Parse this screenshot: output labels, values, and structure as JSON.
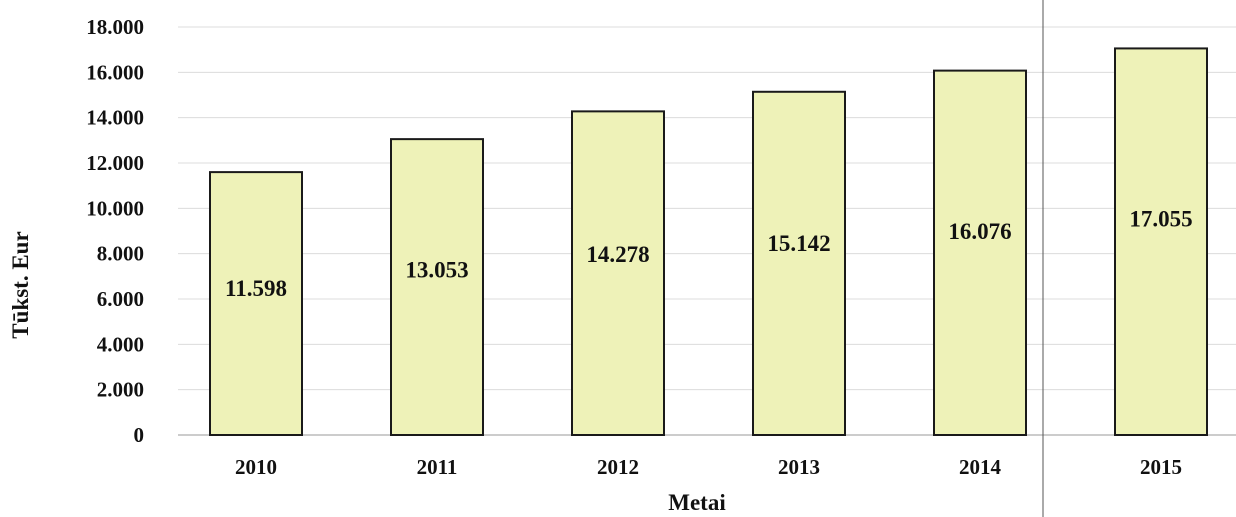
{
  "chart_data": {
    "type": "bar",
    "title": "",
    "xlabel": "Metai",
    "ylabel": "Tūkst. Eur",
    "categories": [
      "2010",
      "2011",
      "2012",
      "2013",
      "2014",
      "2015"
    ],
    "values": [
      11598,
      13053,
      14278,
      15142,
      16076,
      17055
    ],
    "value_labels": [
      "11.598",
      "13.053",
      "14.278",
      "15.142",
      "16.076",
      "17.055"
    ],
    "ylim": [
      0,
      18000
    ],
    "yticks": [
      0,
      2000,
      4000,
      6000,
      8000,
      10000,
      12000,
      14000,
      16000,
      18000
    ],
    "ytick_labels": [
      "0",
      "2.000",
      "4.000",
      "6.000",
      "8.000",
      "10.000",
      "12.000",
      "14.000",
      "16.000",
      "18.000"
    ],
    "grid": true,
    "legend": "none",
    "colors": {
      "bar_fill": "#eef2b8",
      "bar_stroke": "#1a1a1a",
      "grid": "#dcdcdc",
      "separator": "#555555"
    }
  }
}
